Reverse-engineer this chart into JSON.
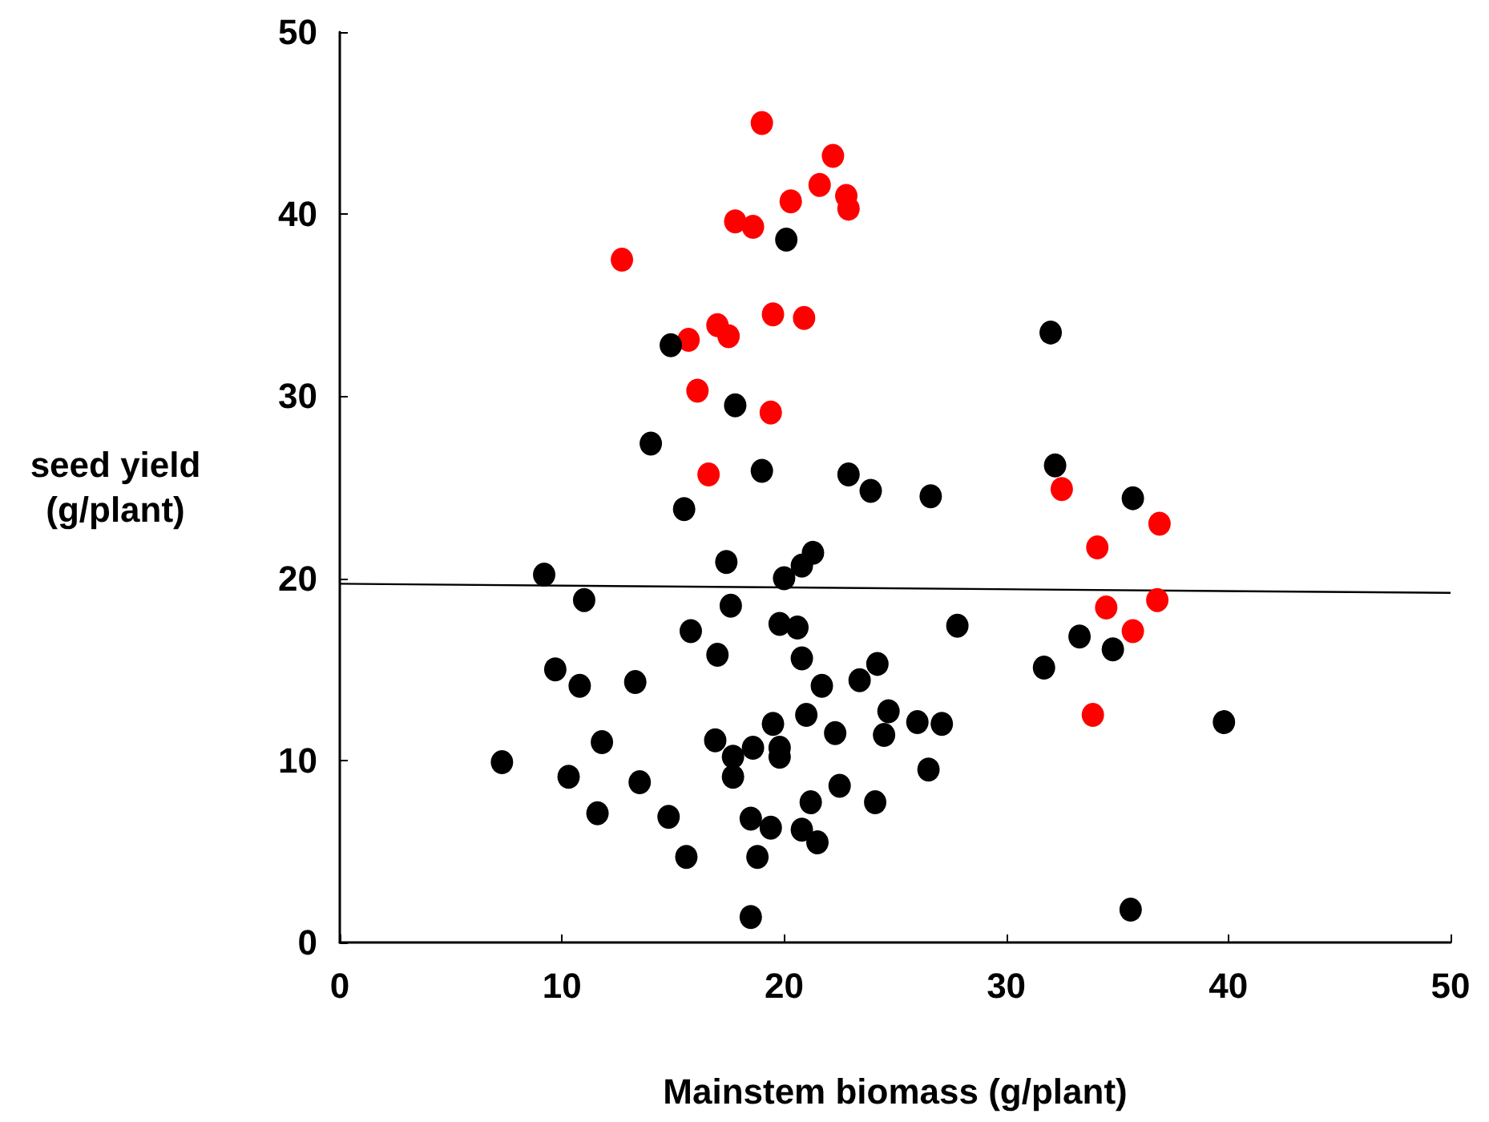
{
  "chart_data": {
    "type": "scatter",
    "xlabel": "Mainstem biomass (g/plant)",
    "ylabel": "seed yield\n(g/plant)",
    "xlim": [
      0,
      50
    ],
    "xticks": [
      0,
      10,
      20,
      30,
      40,
      50
    ],
    "ylim": [
      0,
      50
    ],
    "yticks": [
      0,
      10,
      20,
      30,
      40,
      50
    ],
    "grid": false,
    "marker": "circle",
    "series": [
      {
        "color": "#ff0000",
        "x": [
          19.0,
          22.2,
          21.6,
          22.8,
          22.9,
          20.3,
          17.8,
          18.6,
          12.7,
          19.5,
          20.9,
          17.0,
          17.5,
          15.7,
          16.1,
          19.4,
          16.6,
          32.5,
          36.9,
          34.1,
          34.5,
          36.8,
          35.7,
          33.9
        ],
        "values": [
          45.0,
          43.2,
          41.6,
          41.0,
          40.3,
          40.7,
          39.6,
          39.3,
          37.5,
          34.5,
          34.3,
          33.9,
          33.3,
          33.1,
          30.3,
          29.1,
          25.7,
          24.9,
          23.0,
          21.7,
          18.4,
          18.8,
          17.1,
          12.5
        ]
      },
      {
        "color": "#000000",
        "x": [
          20.1,
          14.9,
          32.0,
          17.8,
          14.0,
          32.2,
          19.0,
          22.9,
          23.9,
          26.6,
          35.7,
          15.5,
          21.3,
          20.8,
          17.4,
          9.2,
          20.0,
          11.0,
          17.6,
          19.8,
          20.6,
          15.8,
          27.8,
          17.0,
          20.8,
          24.2,
          31.7,
          33.3,
          34.8,
          9.7,
          10.8,
          13.3,
          21.7,
          23.4,
          21.0,
          24.7,
          19.5,
          26.0,
          27.1,
          39.8,
          22.3,
          24.5,
          11.8,
          16.9,
          19.8,
          19.8,
          18.6,
          17.7,
          7.3,
          26.5,
          17.7,
          10.3,
          13.5,
          22.5,
          21.2,
          24.1,
          11.6,
          14.8,
          18.5,
          19.4,
          20.8,
          21.5,
          15.6,
          18.8,
          18.5,
          35.6
        ],
        "values": [
          38.6,
          32.8,
          33.5,
          29.5,
          27.4,
          26.2,
          25.9,
          25.7,
          24.8,
          24.5,
          24.4,
          23.8,
          21.4,
          20.7,
          20.9,
          20.2,
          20.0,
          18.8,
          18.5,
          17.5,
          17.3,
          17.1,
          17.4,
          15.8,
          15.6,
          15.3,
          15.1,
          16.8,
          16.1,
          15.0,
          14.1,
          14.3,
          14.1,
          14.4,
          12.5,
          12.7,
          12.0,
          12.1,
          12.0,
          12.1,
          11.5,
          11.4,
          11.0,
          11.1,
          10.7,
          10.2,
          10.7,
          10.2,
          9.9,
          9.5,
          9.1,
          9.1,
          8.8,
          8.6,
          7.7,
          7.7,
          7.1,
          6.9,
          6.8,
          6.3,
          6.2,
          5.5,
          4.7,
          4.7,
          1.4,
          1.8
        ]
      },
      {
        "type": "line",
        "color": "#000000",
        "line_style": "solid",
        "marker": "none",
        "x": [
          0,
          50
        ],
        "values": [
          19.7,
          19.2
        ]
      }
    ]
  }
}
